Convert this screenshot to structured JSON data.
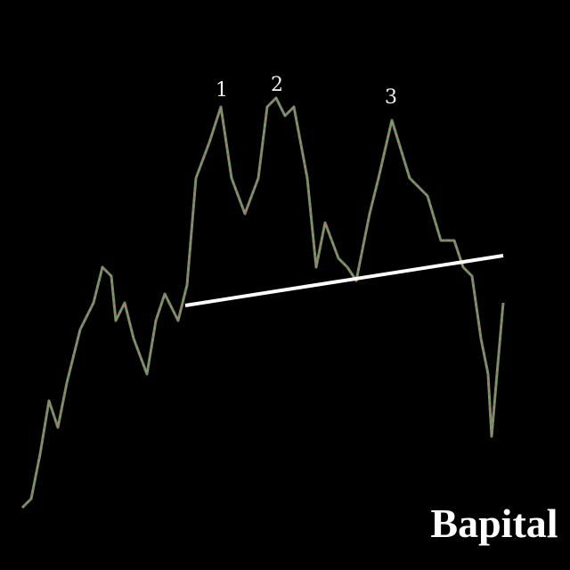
{
  "peaks": [
    "1",
    "2",
    "3"
  ],
  "watermark": "Bapital"
}
